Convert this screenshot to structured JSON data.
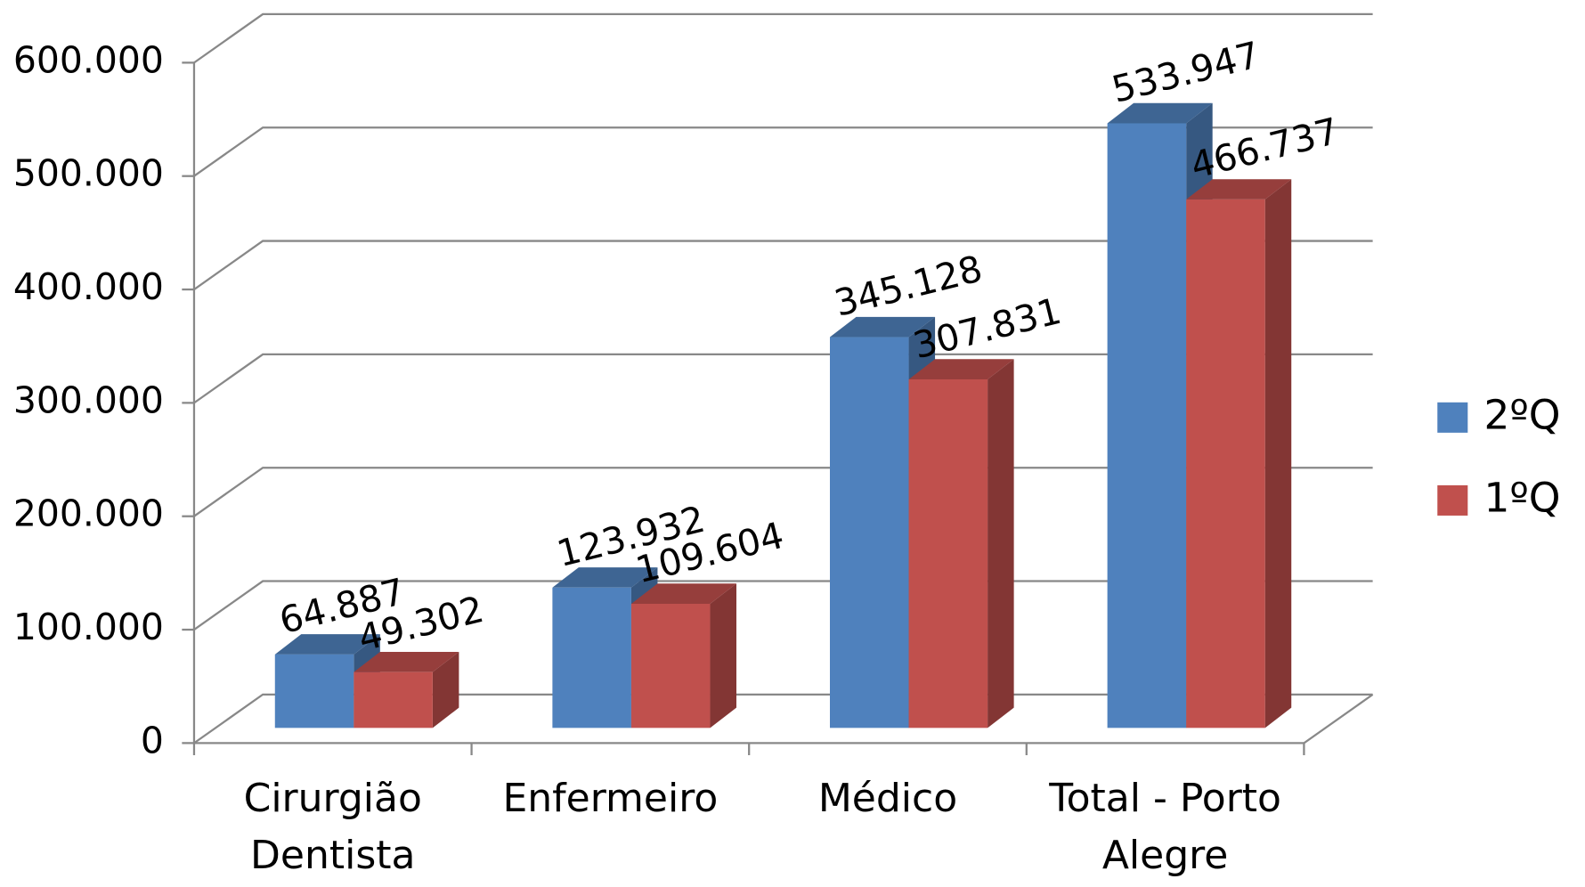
{
  "chart_data": {
    "type": "bar3d",
    "categories": [
      "Cirurgião Dentista",
      "Enfermeiro",
      "Médico",
      "Total - Porto Alegre"
    ],
    "series": [
      {
        "name": "2ºQ",
        "color": "#4f81bd",
        "values": [
          64887,
          123932,
          345128,
          533947
        ],
        "value_labels": [
          "64.887",
          "123.932",
          "345.128",
          "533.947"
        ]
      },
      {
        "name": "1ºQ",
        "color": "#c0504d",
        "values": [
          49302,
          109604,
          307831,
          466737
        ],
        "value_labels": [
          "49.302",
          "109.604",
          "307.831",
          "466.737"
        ]
      }
    ],
    "ylim": [
      0,
      600000
    ],
    "yticks": [
      0,
      {
        "value": 100000,
        "label": "100.000"
      },
      {
        "value": 200000,
        "label": "200.000"
      },
      {
        "value": 300000,
        "label": "300.000"
      },
      {
        "value": 400000,
        "label": "400.000"
      },
      {
        "value": 500000,
        "label": "500.000"
      },
      {
        "value": 600000,
        "label": "600.000"
      }
    ],
    "grid": true,
    "legend": "right"
  }
}
